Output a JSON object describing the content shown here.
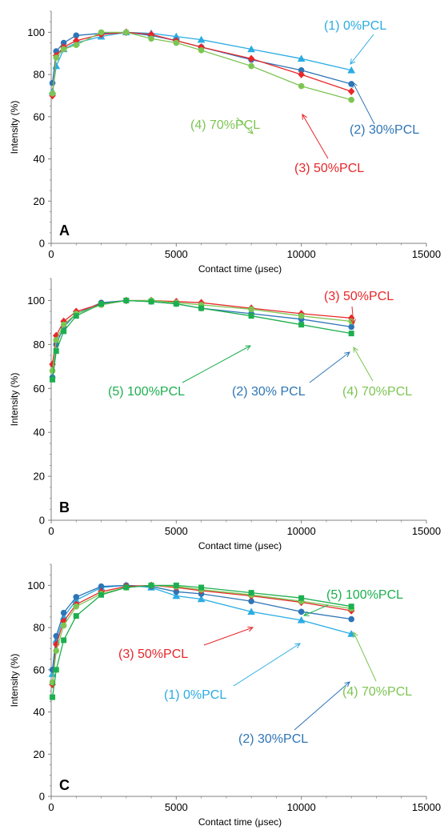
{
  "series_styles": {
    "s1": {
      "color": "#2AACE2",
      "marker": "triangle"
    },
    "s2": {
      "color": "#2E75B6",
      "marker": "circle"
    },
    "s3": {
      "color": "#E8272A",
      "marker": "diamond"
    },
    "s4": {
      "color": "#7DC553",
      "marker": "circle"
    },
    "s5": {
      "color": "#1DAF4F",
      "marker": "square"
    }
  },
  "chart_data": [
    {
      "type": "line",
      "panel": "A",
      "xlabel": "Contact time  (μsec)",
      "ylabel": "Intensity (%)",
      "xlim": [
        0,
        15000
      ],
      "ylim": [
        0,
        110
      ],
      "xticks": [
        "0",
        "5000",
        "10000",
        "15000"
      ],
      "yticks": [
        "0",
        "20",
        "40",
        "60",
        "80",
        "100"
      ],
      "series": [
        {
          "key": "s1",
          "x": [
            50,
            200,
            500,
            1000,
            2000,
            3000,
            4000,
            5000,
            6000,
            8000,
            10000,
            12000
          ],
          "y": [
            72,
            84,
            92,
            95,
            98,
            100,
            99.5,
            98,
            96.5,
            92,
            87.5,
            82
          ]
        },
        {
          "key": "s2",
          "x": [
            50,
            200,
            500,
            1000,
            2000,
            3000,
            4000,
            5000,
            6000,
            8000,
            10000,
            12000
          ],
          "y": [
            76,
            91,
            95,
            98.5,
            99.5,
            100,
            98.5,
            96,
            93,
            87,
            82,
            75.5
          ]
        },
        {
          "key": "s3",
          "x": [
            50,
            200,
            500,
            1000,
            2000,
            3000,
            4000,
            5000,
            6000,
            8000,
            10000,
            12000
          ],
          "y": [
            70,
            89,
            93,
            96,
            99,
            100,
            99,
            96,
            93,
            87.5,
            80,
            72
          ]
        },
        {
          "key": "s4",
          "x": [
            50,
            200,
            500,
            1000,
            2000,
            3000,
            4000,
            5000,
            6000,
            8000,
            10000,
            12000
          ],
          "y": [
            71,
            88,
            92,
            94,
            100,
            100,
            97,
            95,
            91.5,
            84,
            74.5,
            68
          ]
        }
      ],
      "annotations": [
        {
          "key": "s1",
          "text": "(1) 0%PCL"
        },
        {
          "key": "s2",
          "text": "(2) 30%PCL"
        },
        {
          "key": "s3",
          "text": "(3) 50%PCL"
        },
        {
          "key": "s4",
          "text": "(4) 70%PCL"
        }
      ]
    },
    {
      "type": "line",
      "panel": "B",
      "xlabel": "Contact time  (μsec)",
      "ylabel": "Intensity (%)",
      "xlim": [
        0,
        15000
      ],
      "ylim": [
        0,
        110
      ],
      "xticks": [
        "0",
        "5000",
        "10000",
        "15000"
      ],
      "yticks": [
        "0",
        "20",
        "40",
        "60",
        "80",
        "100"
      ],
      "series": [
        {
          "key": "s2",
          "x": [
            50,
            200,
            500,
            1000,
            2000,
            3000,
            4000,
            5000,
            6000,
            8000,
            10000,
            12000
          ],
          "y": [
            65,
            80,
            88,
            94,
            99,
            100,
            99.5,
            98.5,
            96.5,
            94,
            91.5,
            88
          ]
        },
        {
          "key": "s3",
          "x": [
            50,
            200,
            500,
            1000,
            2000,
            3000,
            4000,
            5000,
            6000,
            8000,
            10000,
            12000
          ],
          "y": [
            71,
            84,
            90.5,
            95,
            98.5,
            100,
            100,
            99.5,
            99,
            96.5,
            94,
            92
          ]
        },
        {
          "key": "s4",
          "x": [
            50,
            200,
            500,
            1000,
            2000,
            3000,
            4000,
            5000,
            6000,
            8000,
            10000,
            12000
          ],
          "y": [
            68,
            82,
            89,
            94,
            98,
            100,
            100,
            99,
            98,
            96,
            93,
            90.5
          ]
        },
        {
          "key": "s5",
          "x": [
            50,
            200,
            500,
            1000,
            2000,
            3000,
            4000,
            5000,
            6000,
            8000,
            10000,
            12000
          ],
          "y": [
            64,
            77,
            86,
            93,
            98.5,
            100,
            99.5,
            98.5,
            96.5,
            93,
            89,
            85
          ]
        }
      ],
      "annotations": [
        {
          "key": "s3",
          "text": "(3) 50%PCL"
        },
        {
          "key": "s5",
          "text": "(5) 100%PCL"
        },
        {
          "key": "s2",
          "text": "(2) 30% PCL"
        },
        {
          "key": "s4",
          "text": "(4) 70%PCL"
        }
      ]
    },
    {
      "type": "line",
      "panel": "C",
      "xlabel": "Contact time  (μsec)",
      "ylabel": "Intensity (%)",
      "xlim": [
        0,
        15000
      ],
      "ylim": [
        0,
        110
      ],
      "xticks": [
        "0",
        "5000",
        "10000",
        "15000"
      ],
      "yticks": [
        "0",
        "20",
        "40",
        "60",
        "80",
        "100"
      ],
      "series": [
        {
          "key": "s1",
          "x": [
            50,
            200,
            500,
            1000,
            2000,
            3000,
            4000,
            5000,
            6000,
            8000,
            10000,
            12000
          ],
          "y": [
            58,
            74,
            85,
            93,
            99,
            100,
            99,
            95,
            93.5,
            87.5,
            83.5,
            77
          ]
        },
        {
          "key": "s2",
          "x": [
            50,
            200,
            500,
            1000,
            2000,
            3000,
            4000,
            5000,
            6000,
            8000,
            10000,
            12000
          ],
          "y": [
            60,
            76,
            87,
            94.5,
            99.5,
            100,
            99.5,
            97,
            96,
            92.5,
            87.5,
            84
          ]
        },
        {
          "key": "s3",
          "x": [
            50,
            200,
            500,
            1000,
            2000,
            3000,
            4000,
            5000,
            6000,
            8000,
            10000,
            12000
          ],
          "y": [
            53,
            72,
            83,
            91,
            97,
            99.5,
            100,
            99,
            97.5,
            95,
            92,
            88
          ]
        },
        {
          "key": "s4",
          "x": [
            50,
            200,
            500,
            1000,
            2000,
            3000,
            4000,
            5000,
            6000,
            8000,
            10000,
            12000
          ],
          "y": [
            54,
            69,
            81,
            90,
            96,
            99,
            100,
            99.5,
            98,
            95.5,
            92.5,
            89
          ]
        },
        {
          "key": "s5",
          "x": [
            50,
            200,
            500,
            1000,
            2000,
            3000,
            4000,
            5000,
            6000,
            8000,
            10000,
            12000
          ],
          "y": [
            47,
            60,
            74,
            85.5,
            95.5,
            99,
            100,
            100,
            99,
            96.5,
            94,
            90
          ]
        }
      ],
      "annotations": [
        {
          "key": "s5",
          "text": "(5) 100%PCL"
        },
        {
          "key": "s3",
          "text": "(3) 50%PCL"
        },
        {
          "key": "s1",
          "text": "(1) 0%PCL"
        },
        {
          "key": "s4",
          "text": "(4) 70%PCL"
        },
        {
          "key": "s2",
          "text": "(2) 30%PCL"
        }
      ]
    }
  ]
}
